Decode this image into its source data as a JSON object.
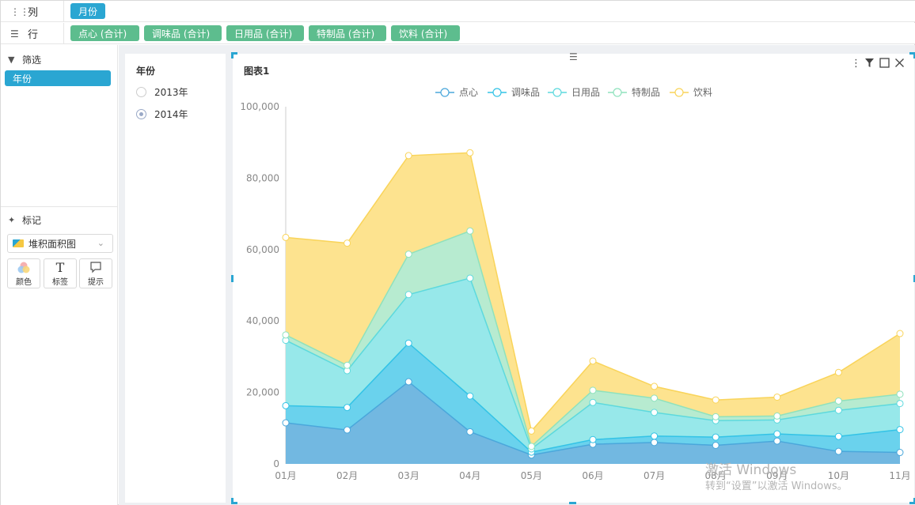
{
  "shelf": {
    "columns": {
      "label": "列",
      "icon": "columns-icon",
      "pills": [
        "月份"
      ]
    },
    "rows": {
      "label": "行",
      "icon": "rows-icon",
      "pills": [
        "点心 (合计)",
        "调味品 (合计)",
        "日用品 (合计)",
        "特制品 (合计)",
        "饮料 (合计)"
      ]
    }
  },
  "left": {
    "filter_title": "筛选",
    "filter_pill": "年份",
    "marks_title": "标记",
    "mark_type": "堆积面积图",
    "mark_buttons": [
      "颜色",
      "标签",
      "提示"
    ]
  },
  "year_filter": {
    "title": "年份",
    "options": [
      "2013年",
      "2014年"
    ],
    "selected": "2014年"
  },
  "chart_card": {
    "title": "图表1"
  },
  "watermark": {
    "line1": "激活 Windows",
    "line2": "转到“设置”以激活 Windows。"
  },
  "colors": {
    "accent_blue": "#2aa6d2",
    "pill_green": "#5dbd8e"
  },
  "chart_data": {
    "type": "area",
    "stacked": true,
    "categories": [
      "01月",
      "02月",
      "03月",
      "04月",
      "05月",
      "06月",
      "07月",
      "08月",
      "09月",
      "10月",
      "11月"
    ],
    "series": [
      {
        "name": "点心",
        "color": "#4aa7db",
        "fill": "#72b8e1",
        "values": [
          11500,
          9500,
          23000,
          9000,
          2500,
          5500,
          6000,
          5200,
          6400,
          3500,
          3200
        ]
      },
      {
        "name": "调味品",
        "color": "#33c3e6",
        "fill": "#6ad2ed",
        "values": [
          4800,
          6300,
          10800,
          10000,
          800,
          1300,
          1800,
          2300,
          2000,
          4200,
          6400
        ]
      },
      {
        "name": "日用品",
        "color": "#5dd9dd",
        "fill": "#97e8ea",
        "values": [
          18300,
          10300,
          13600,
          33000,
          900,
          10400,
          6600,
          4600,
          3900,
          7300,
          7300
        ]
      },
      {
        "name": "特制品",
        "color": "#8fe2bd",
        "fill": "#b7ebd0",
        "values": [
          1500,
          1500,
          11300,
          13200,
          700,
          3400,
          4000,
          1100,
          1100,
          2600,
          2600
        ]
      },
      {
        "name": "饮料",
        "color": "#f9d45a",
        "fill": "#fde38f",
        "values": [
          27300,
          34200,
          27600,
          21900,
          4300,
          8200,
          3300,
          4700,
          5300,
          8000,
          17000
        ]
      }
    ],
    "ylim": [
      0,
      100000
    ],
    "yticks": [
      "0",
      "20,000",
      "40,000",
      "60,000",
      "80,000",
      "100,000"
    ],
    "legend": "top-center",
    "grid": false
  }
}
